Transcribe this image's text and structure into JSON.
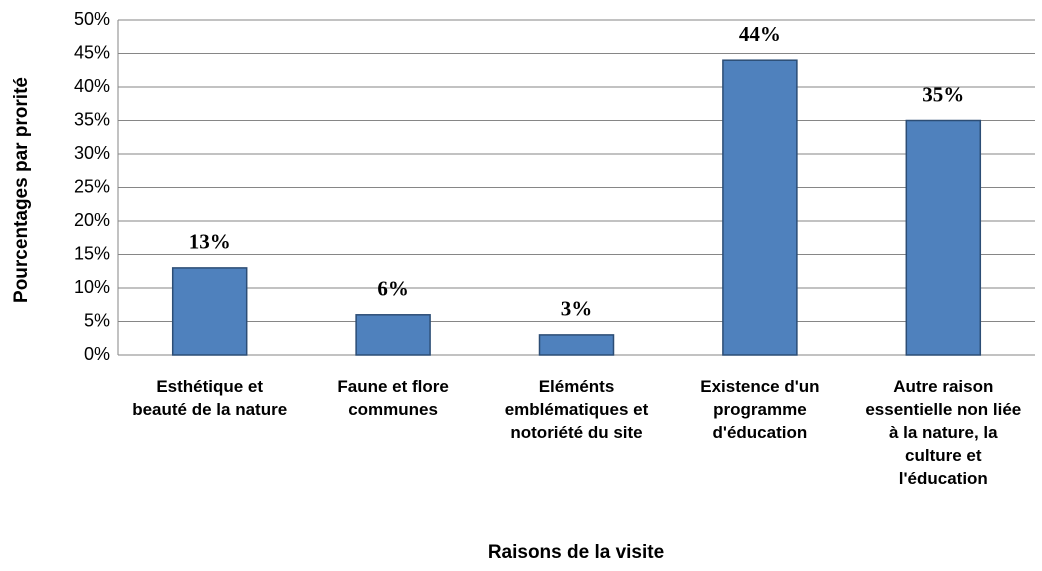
{
  "chart_data": {
    "type": "bar",
    "y_axis_label": "Pourcentages par prorité",
    "x_axis_label": "Raisons de la visite",
    "categories": [
      "Esthétique et beauté de la nature",
      "Faune et flore communes",
      "Eléménts emblématiques et notoriété du site",
      "Existence d'un programme d'éducation",
      "Autre raison essentielle non liée à la nature, la culture et l'éducation"
    ],
    "values": [
      13,
      6,
      3,
      44,
      35
    ],
    "value_labels": [
      "13%",
      "6%",
      "3%",
      "44%",
      "35%"
    ],
    "color": "#4f81bd",
    "ylim": [
      0,
      50
    ],
    "yticks": [
      {
        "value": 0,
        "label": "0%"
      },
      {
        "value": 5,
        "label": "5%"
      },
      {
        "value": 10,
        "label": "10%"
      },
      {
        "value": 15,
        "label": "15%"
      },
      {
        "value": 20,
        "label": "20%"
      },
      {
        "value": 25,
        "label": "25%"
      },
      {
        "value": 30,
        "label": "30%"
      },
      {
        "value": 35,
        "label": "35%"
      },
      {
        "value": 40,
        "label": "40%"
      },
      {
        "value": 45,
        "label": "45%"
      },
      {
        "value": 50,
        "label": "50%"
      }
    ],
    "grid": true
  }
}
